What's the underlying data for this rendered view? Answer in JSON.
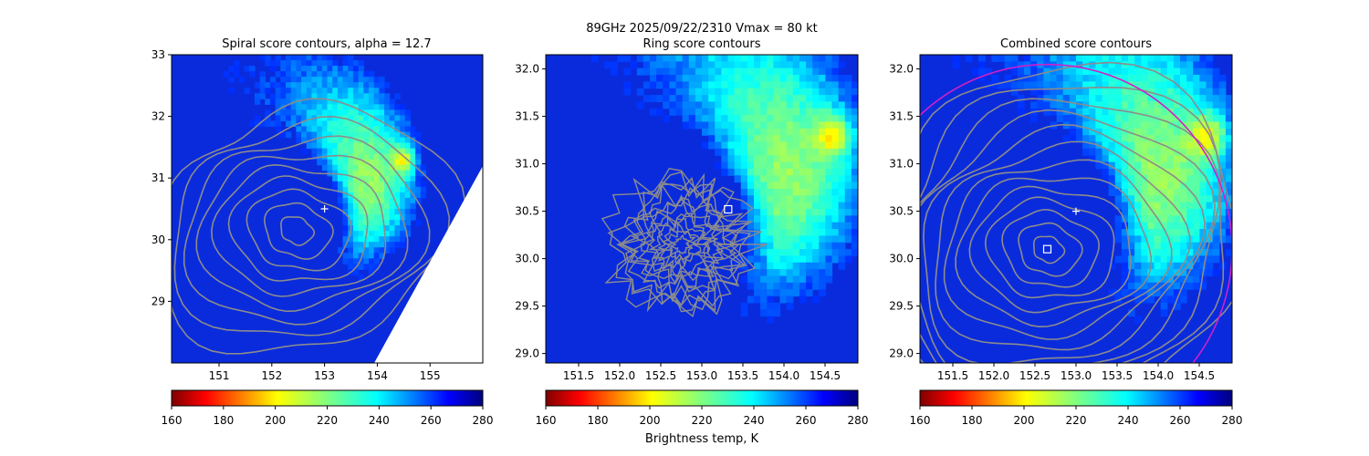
{
  "figure": {
    "suptitle_line1": "89GHz  2025/09/22/2310    Vmax = 80 kt",
    "colorbar_label": "Brightness temp, K"
  },
  "chart_data": [
    {
      "type": "heatmap",
      "title": "Spiral score contours, alpha = 12.7",
      "xlim": [
        150.1,
        156.0
      ],
      "ylim": [
        28.0,
        33.0
      ],
      "x_ticks": [
        151,
        152,
        153,
        154,
        155
      ],
      "x_tick_labels": [
        "151",
        "152",
        "153",
        "154",
        "155"
      ],
      "y_ticks": [
        29,
        30,
        31,
        32,
        33
      ],
      "y_tick_labels": [
        "29",
        "30",
        "31",
        "32",
        "33"
      ],
      "storm_center_marker": {
        "x": 153.0,
        "y": 30.5
      },
      "contour_center": {
        "x": 152.45,
        "y": 30.15
      },
      "has_missing_data_wedge": true
    },
    {
      "type": "heatmap",
      "title": "Ring score contours",
      "xlim": [
        151.1,
        154.9
      ],
      "ylim": [
        28.9,
        32.15
      ],
      "x_ticks": [
        151.5,
        152.0,
        152.5,
        153.0,
        153.5,
        154.0,
        154.5
      ],
      "x_tick_labels": [
        "151.5",
        "152.0",
        "152.5",
        "153.0",
        "153.5",
        "154.0",
        "154.5"
      ],
      "y_ticks": [
        29.0,
        29.5,
        30.0,
        30.5,
        31.0,
        31.5,
        32.0
      ],
      "y_tick_labels": [
        "29.0",
        "29.5",
        "30.0",
        "30.5",
        "31.0",
        "31.5",
        "32.0"
      ],
      "best_center_marker": {
        "x": 153.32,
        "y": 30.52
      }
    },
    {
      "type": "heatmap",
      "title": "Combined score contours",
      "xlim": [
        151.1,
        154.9
      ],
      "ylim": [
        28.9,
        32.15
      ],
      "x_ticks": [
        151.5,
        152.0,
        152.5,
        153.0,
        153.5,
        154.0,
        154.5
      ],
      "x_tick_labels": [
        "151.5",
        "152.0",
        "152.5",
        "153.0",
        "153.5",
        "154.0",
        "154.5"
      ],
      "y_ticks": [
        29.0,
        29.5,
        30.0,
        30.5,
        31.0,
        31.5,
        32.0
      ],
      "y_tick_labels": [
        "29.0",
        "29.5",
        "30.0",
        "30.5",
        "31.0",
        "31.5",
        "32.0"
      ],
      "storm_center_marker": {
        "x": 153.0,
        "y": 30.5
      },
      "best_center_marker": {
        "x": 152.65,
        "y": 30.1
      },
      "ring_circle": {
        "x": 152.65,
        "y": 30.1,
        "radius_deg": 2.25,
        "color": "#d020c8"
      }
    }
  ],
  "colorbar": {
    "min": 160,
    "max": 280,
    "ticks": [
      160,
      180,
      200,
      220,
      240,
      260,
      280
    ],
    "tick_labels": [
      "160",
      "180",
      "200",
      "220",
      "240",
      "260",
      "280"
    ],
    "colormap": "jet_r"
  },
  "colors": {
    "contour": "#8c8c8c",
    "marker": "#ffffff",
    "ring": "#d020c8"
  }
}
